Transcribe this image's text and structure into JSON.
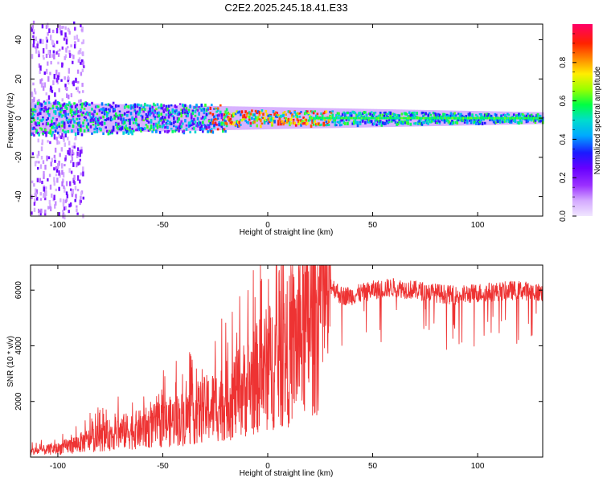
{
  "title": "C2E2.2025.245.18.41.E33",
  "colors": {
    "snr_line": "#ee3333",
    "axis": "#000000",
    "background": "#ffffff"
  },
  "chart_data": [
    {
      "type": "heatmap",
      "name": "spectrogram",
      "xlabel": "Height of straight line (km)",
      "ylabel": "Frequency (Hz)",
      "xlim": [
        -113,
        131
      ],
      "ylim": [
        -50,
        48
      ],
      "xticks": [
        -100,
        -50,
        0,
        50,
        100
      ],
      "yticks": [
        -40,
        -20,
        0,
        20,
        40
      ],
      "xtick_labels": [
        "-100",
        "-50",
        "0",
        "50",
        "100"
      ],
      "ytick_labels": [
        "-40",
        "-20",
        "0",
        "20",
        "40"
      ],
      "colorbar": {
        "label": "Normalized spectral amplitude",
        "range": [
          0,
          1
        ],
        "ticks": [
          0.0,
          0.2,
          0.4,
          0.6,
          0.8
        ],
        "tick_labels": [
          "0.0",
          "0.2",
          "0.4",
          "0.6",
          "0.8"
        ],
        "colormap": [
          "#ffffff",
          "#cc99ff",
          "#7b00ff",
          "#0000ff",
          "#00ccff",
          "#00ff33",
          "#ffff00",
          "#ff6600",
          "#ff0000",
          "#ff0066"
        ]
      },
      "band": {
        "center_hz": 0,
        "halfwidth_at_left_hz": 8,
        "halfwidth_at_right_hz": 3,
        "scatter_region_km": [
          -113,
          -88
        ],
        "peak_region_km": [
          -30,
          30
        ]
      }
    },
    {
      "type": "line",
      "name": "snr",
      "xlabel": "Height of straight line (km)",
      "ylabel": "SNR (10 * v/v)",
      "xlim": [
        -113,
        131
      ],
      "ylim": [
        0,
        6900
      ],
      "xticks": [
        -100,
        -50,
        0,
        50,
        100
      ],
      "yticks": [
        2000,
        4000,
        6000
      ],
      "xtick_labels": [
        "-100",
        "-50",
        "0",
        "50",
        "100"
      ],
      "ytick_labels": [
        "2000",
        "4000",
        "6000"
      ],
      "trend": {
        "x": [
          -113,
          -100,
          -90,
          -80,
          -70,
          -60,
          -50,
          -40,
          -30,
          -20,
          -10,
          0,
          8,
          15,
          20,
          25,
          30,
          35,
          40,
          50,
          60,
          70,
          80,
          90,
          100,
          110,
          120,
          131
        ],
        "y": [
          200,
          300,
          500,
          700,
          900,
          1000,
          1200,
          1400,
          1700,
          2000,
          2500,
          3200,
          3600,
          4300,
          4800,
          5400,
          6200,
          5800,
          5800,
          6000,
          6100,
          6000,
          5900,
          5800,
          5900,
          5950,
          6000,
          5900
        ]
      }
    }
  ]
}
